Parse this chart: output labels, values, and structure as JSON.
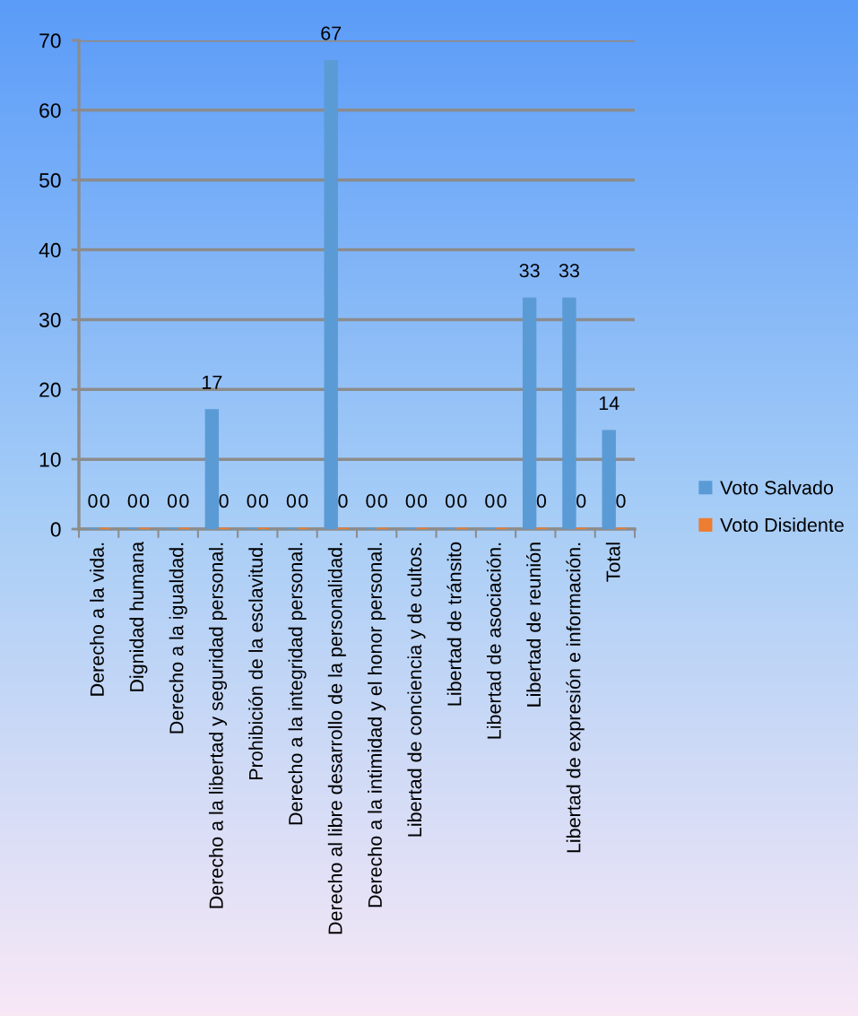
{
  "chart_data": {
    "type": "bar",
    "categories": [
      "Derecho a la vida.",
      "Dignidad humana",
      "Derecho a la igualdad.",
      "Derecho a la libertad y seguridad personal.",
      "Prohibición de la esclavitud.",
      "Derecho a la integridad personal.",
      "Derecho al libre desarrollo de la personalidad.",
      "Derecho a la intimidad y el honor personal.",
      "Libertad de conciencia y de cultos.",
      "Libertad de tránsito",
      "Libertad de asociación.",
      "Libertad de reunión",
      "Libertad de expresión e información.",
      "Total"
    ],
    "series": [
      {
        "name": "Voto Salvado",
        "color": "#5b9bd5",
        "values": [
          0,
          0,
          0,
          17,
          0,
          0,
          67,
          0,
          0,
          0,
          0,
          33,
          33,
          14
        ]
      },
      {
        "name": "Voto Disidente",
        "color": "#ed7d31",
        "values": [
          0,
          0,
          0,
          0,
          0,
          0,
          0,
          0,
          0,
          0,
          0,
          0,
          0,
          0
        ]
      }
    ],
    "ylim": [
      0,
      70
    ],
    "yticks": [
      0,
      10,
      20,
      30,
      40,
      50,
      60,
      70
    ],
    "grid": "y",
    "legend": "right",
    "data_labels": true
  }
}
